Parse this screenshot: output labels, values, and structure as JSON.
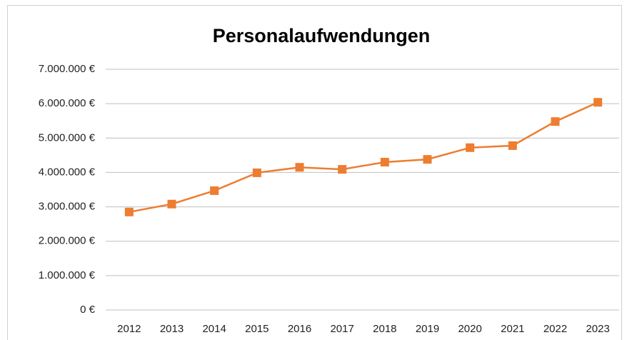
{
  "chart_data": {
    "type": "line",
    "title": "Personalaufwendungen",
    "categories": [
      "2012",
      "2013",
      "2014",
      "2015",
      "2016",
      "2017",
      "2018",
      "2019",
      "2020",
      "2021",
      "2022",
      "2023"
    ],
    "values": [
      2850000,
      3080000,
      3470000,
      3990000,
      4150000,
      4090000,
      4300000,
      4380000,
      4720000,
      4780000,
      5480000,
      6040000
    ],
    "color": "#ed7d31",
    "ylim": [
      0,
      7000000
    ],
    "yticks": [
      {
        "value": 0,
        "label": "0 €"
      },
      {
        "value": 1000000,
        "label": "1.000.000 €"
      },
      {
        "value": 2000000,
        "label": "2.000.000 €"
      },
      {
        "value": 3000000,
        "label": "3.000.000 €"
      },
      {
        "value": 4000000,
        "label": "4.000.000 €"
      },
      {
        "value": 5000000,
        "label": "5.000.000 €"
      },
      {
        "value": 6000000,
        "label": "6.000.000 €"
      },
      {
        "value": 7000000,
        "label": "7.000.000 €"
      }
    ],
    "grid": true
  }
}
